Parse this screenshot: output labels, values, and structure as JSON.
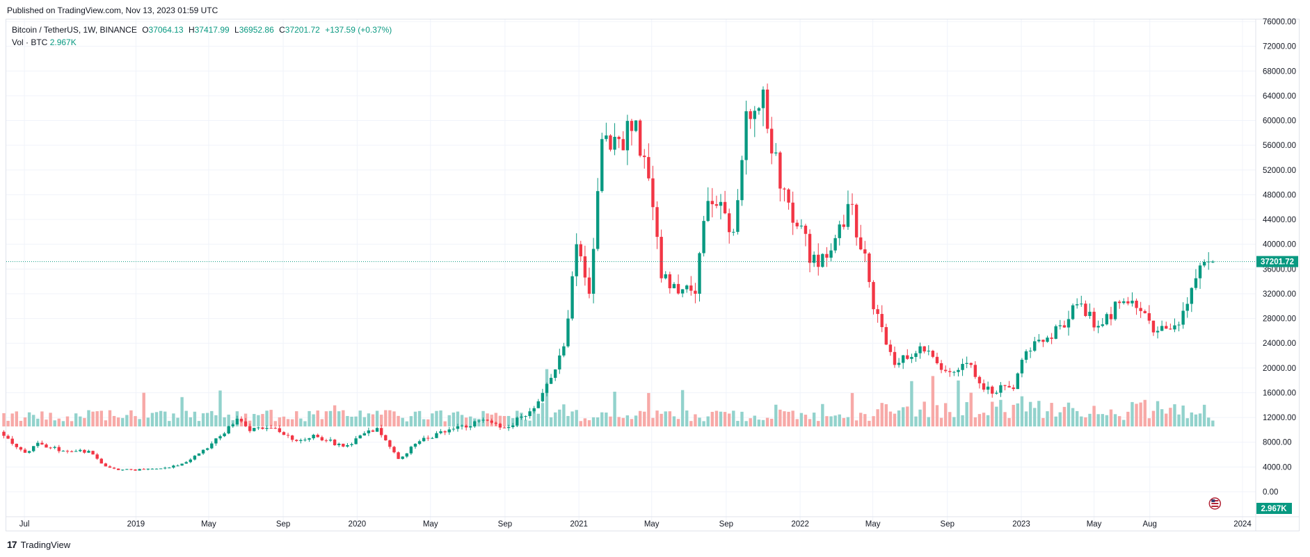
{
  "header": {
    "published": "Published on TradingView.com, Nov 13, 2023 01:59 UTC"
  },
  "legend": {
    "symbol": "Bitcoin / TetherUS, 1W, BINANCE",
    "o_label": "O",
    "o_value": "37064.13",
    "h_label": "H",
    "h_value": "37417.99",
    "l_label": "L",
    "l_value": "36952.86",
    "c_label": "C",
    "c_value": "37201.72",
    "change": "+137.59 (+0.37%)",
    "vol_label": "Vol · BTC",
    "vol_value": "2.967K"
  },
  "footer": {
    "brand": "TradingView",
    "mark": "17"
  },
  "colors": {
    "up": "#089981",
    "down": "#f23645",
    "vol_up": "#92d2cc",
    "vol_down": "#f7a9a7",
    "grid": "#f0f3fa",
    "axis_text": "#131722"
  },
  "chart_data": {
    "type": "candlestick",
    "title": "Bitcoin / TetherUS, 1W, BINANCE",
    "interval": "1W",
    "y_ticks": [
      "76000.00",
      "72000.00",
      "68000.00",
      "64000.00",
      "60000.00",
      "56000.00",
      "52000.00",
      "48000.00",
      "44000.00",
      "40000.00",
      "36000.00",
      "32000.00",
      "28000.00",
      "24000.00",
      "20000.00",
      "16000.00",
      "12000.00",
      "8000.00",
      "4000.00",
      "0.00"
    ],
    "ylim": [
      0,
      77000
    ],
    "x_ticks": [
      "Jul",
      "2019",
      "May",
      "Sep",
      "2020",
      "May",
      "Sep",
      "2021",
      "May",
      "Sep",
      "2022",
      "May",
      "Sep",
      "2023",
      "May",
      "Aug",
      "2024"
    ],
    "last_price": 37201.72,
    "last_price_label": "37201.72",
    "last_volume_label": "2.967K",
    "grid": true,
    "close_points": [
      [
        "2018-05-28",
        9500
      ],
      [
        "2018-07-09",
        6300
      ],
      [
        "2018-07-30",
        7900
      ],
      [
        "2018-09-10",
        6600
      ],
      [
        "2018-10-22",
        6600
      ],
      [
        "2018-11-19",
        4100
      ],
      [
        "2018-12-10",
        3500
      ],
      [
        "2019-01-21",
        3600
      ],
      [
        "2019-03-04",
        3900
      ],
      [
        "2019-04-08",
        5200
      ],
      [
        "2019-05-13",
        7800
      ],
      [
        "2019-06-24",
        11800
      ],
      [
        "2019-07-15",
        9800
      ],
      [
        "2019-08-19",
        10300
      ],
      [
        "2019-09-30",
        8200
      ],
      [
        "2019-10-28",
        9200
      ],
      [
        "2019-12-16",
        7300
      ],
      [
        "2020-02-10",
        10300
      ],
      [
        "2020-03-16",
        5300
      ],
      [
        "2020-04-27",
        8700
      ],
      [
        "2020-06-01",
        9600
      ],
      [
        "2020-07-27",
        11500
      ],
      [
        "2020-09-07",
        10300
      ],
      [
        "2020-10-26",
        13500
      ],
      [
        "2020-12-14",
        23500
      ],
      [
        "2021-01-04",
        40000
      ],
      [
        "2021-01-25",
        32000
      ],
      [
        "2021-02-15",
        57000
      ],
      [
        "2021-03-15",
        57000
      ],
      [
        "2021-04-12",
        60000
      ],
      [
        "2021-05-10",
        46000
      ],
      [
        "2021-05-24",
        34500
      ],
      [
        "2021-07-19",
        32000
      ],
      [
        "2021-08-09",
        47000
      ],
      [
        "2021-09-06",
        45000
      ],
      [
        "2021-09-20",
        42000
      ],
      [
        "2021-10-11",
        61500
      ],
      [
        "2021-11-08",
        65000
      ],
      [
        "2021-12-06",
        49000
      ],
      [
        "2022-01-10",
        43000
      ],
      [
        "2022-01-24",
        37000
      ],
      [
        "2022-02-28",
        39000
      ],
      [
        "2022-03-28",
        46500
      ],
      [
        "2022-04-25",
        38500
      ],
      [
        "2022-05-09",
        29500
      ],
      [
        "2022-06-13",
        20500
      ],
      [
        "2022-07-25",
        23500
      ],
      [
        "2022-09-05",
        19500
      ],
      [
        "2022-10-17",
        20500
      ],
      [
        "2022-11-07",
        16500
      ],
      [
        "2022-12-26",
        16600
      ],
      [
        "2023-01-16",
        22700
      ],
      [
        "2023-03-13",
        26900
      ],
      [
        "2023-04-10",
        30300
      ],
      [
        "2023-05-15",
        26800
      ],
      [
        "2023-06-19",
        30500
      ],
      [
        "2023-07-24",
        29200
      ],
      [
        "2023-08-21",
        26000
      ],
      [
        "2023-09-25",
        27000
      ],
      [
        "2023-10-23",
        34500
      ],
      [
        "2023-11-13",
        37201.72
      ]
    ]
  }
}
